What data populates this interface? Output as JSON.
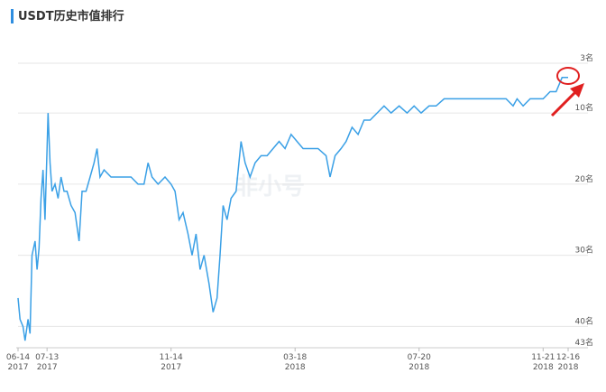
{
  "chart_data": {
    "type": "line",
    "title": "USDT历史市值排行",
    "watermark": "非小号",
    "color": "#3aa0e6",
    "y_inverted": true,
    "grid": true,
    "xlim": [
      "2017-06-14",
      "2018-12-16"
    ],
    "xticks": [
      {
        "value": "2017-06-14",
        "label": "06-14",
        "year": "2017"
      },
      {
        "value": "2017-07-13",
        "label": "07-13",
        "year": "2017"
      },
      {
        "value": "2017-11-14",
        "label": "11-14",
        "year": "2017"
      },
      {
        "value": "2018-03-18",
        "label": "03-18",
        "year": "2018"
      },
      {
        "value": "2018-07-20",
        "label": "07-20",
        "year": "2018"
      },
      {
        "value": "2018-11-21",
        "label": "11-21",
        "year": "2018"
      },
      {
        "value": "2018-12-16",
        "label": "12-16",
        "year": "2018"
      }
    ],
    "ylim": [
      3,
      43
    ],
    "yticks": [
      {
        "value": 3,
        "label": "3名"
      },
      {
        "value": 10,
        "label": "10名"
      },
      {
        "value": 20,
        "label": "20名"
      },
      {
        "value": 30,
        "label": "30名"
      },
      {
        "value": 40,
        "label": "40名"
      },
      {
        "value": 43,
        "label": "43名"
      }
    ],
    "x": [
      "2017-06-14",
      "2017-06-16",
      "2017-06-19",
      "2017-06-21",
      "2017-06-24",
      "2017-06-26",
      "2017-06-28",
      "2017-07-01",
      "2017-07-03",
      "2017-07-05",
      "2017-07-07",
      "2017-07-09",
      "2017-07-11",
      "2017-07-13",
      "2017-07-14",
      "2017-07-16",
      "2017-07-18",
      "2017-07-21",
      "2017-07-24",
      "2017-07-27",
      "2017-07-30",
      "2017-08-02",
      "2017-08-06",
      "2017-08-10",
      "2017-08-14",
      "2017-08-17",
      "2017-08-21",
      "2017-08-25",
      "2017-08-29",
      "2017-09-01",
      "2017-09-04",
      "2017-09-08",
      "2017-09-15",
      "2017-09-25",
      "2017-10-05",
      "2017-10-12",
      "2017-10-18",
      "2017-10-22",
      "2017-10-26",
      "2017-11-01",
      "2017-11-08",
      "2017-11-14",
      "2017-11-18",
      "2017-11-22",
      "2017-11-26",
      "2017-12-01",
      "2017-12-05",
      "2017-12-09",
      "2017-12-13",
      "2017-12-17",
      "2017-12-22",
      "2017-12-26",
      "2017-12-30",
      "2018-01-02",
      "2018-01-05",
      "2018-01-09",
      "2018-01-13",
      "2018-01-18",
      "2018-01-23",
      "2018-01-27",
      "2018-02-01",
      "2018-02-06",
      "2018-02-12",
      "2018-02-18",
      "2018-02-24",
      "2018-03-02",
      "2018-03-08",
      "2018-03-14",
      "2018-03-20",
      "2018-03-26",
      "2018-04-01",
      "2018-04-10",
      "2018-04-18",
      "2018-04-22",
      "2018-04-27",
      "2018-05-03",
      "2018-05-08",
      "2018-05-14",
      "2018-05-20",
      "2018-05-26",
      "2018-06-01",
      "2018-06-08",
      "2018-06-15",
      "2018-06-22",
      "2018-06-30",
      "2018-07-08",
      "2018-07-15",
      "2018-07-22",
      "2018-07-30",
      "2018-08-06",
      "2018-08-14",
      "2018-08-24",
      "2018-09-05",
      "2018-09-20",
      "2018-10-05",
      "2018-10-15",
      "2018-10-22",
      "2018-10-26",
      "2018-11-01",
      "2018-11-08",
      "2018-11-15",
      "2018-11-21",
      "2018-11-28",
      "2018-12-04",
      "2018-12-10",
      "2018-12-16"
    ],
    "values": [
      36,
      39,
      40,
      42,
      39,
      41,
      30,
      28,
      32,
      29,
      22,
      18,
      25,
      15,
      10,
      17,
      21,
      20,
      22,
      19,
      21,
      21,
      23,
      24,
      28,
      21,
      21,
      19,
      17,
      15,
      19,
      18,
      19,
      19,
      19,
      20,
      20,
      17,
      19,
      20,
      19,
      20,
      21,
      25,
      24,
      27,
      30,
      27,
      32,
      30,
      34,
      38,
      36,
      30,
      23,
      25,
      22,
      21,
      14,
      17,
      19,
      17,
      16,
      16,
      15,
      14,
      15,
      13,
      14,
      15,
      15,
      15,
      16,
      19,
      16,
      15,
      14,
      12,
      13,
      11,
      11,
      10,
      9,
      10,
      9,
      10,
      9,
      10,
      9,
      9,
      8,
      8,
      8,
      8,
      8,
      8,
      9,
      8,
      9,
      8,
      8,
      8,
      7,
      7,
      5,
      5
    ]
  }
}
